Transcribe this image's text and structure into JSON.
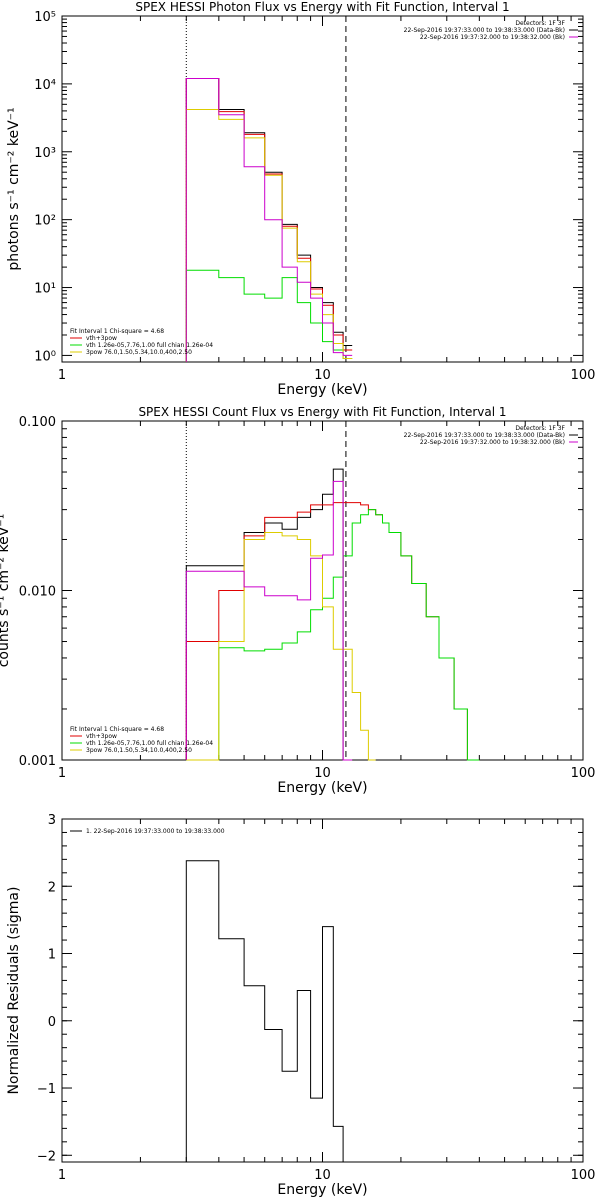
{
  "chart_data": [
    {
      "type": "line",
      "title": "SPEX HESSI Photon Flux vs Energy with Fit Function, Interval 1",
      "xlabel": "Energy (keV)",
      "ylabel": "photons s⁻¹ cm⁻² keV⁻¹",
      "xscale": "log",
      "yscale": "log",
      "xlim": [
        1,
        100
      ],
      "ylim": [
        0.8,
        100000
      ],
      "x_ticks": [
        "1",
        "10",
        "100"
      ],
      "y_ticks": [
        "10⁰",
        "10¹",
        "10²",
        "10³",
        "10⁴",
        "10⁵"
      ],
      "vlines": [
        {
          "x": 3.0,
          "style": "dotted"
        },
        {
          "x": 12.3,
          "style": "dashed"
        }
      ],
      "bin_edges": [
        3,
        4,
        5,
        6,
        7,
        8,
        9,
        10,
        11,
        12,
        13
      ],
      "series": [
        {
          "name": "data",
          "color": "#000000",
          "values": [
            12000,
            4200,
            1900,
            500,
            85,
            30,
            10,
            6,
            2.2,
            1.4
          ]
        },
        {
          "name": "vth+3pow",
          "color": "#e00000",
          "values": [
            12000,
            3900,
            1800,
            470,
            80,
            27,
            9.5,
            5.5,
            2.0,
            1.2
          ]
        },
        {
          "name": "vth 1.26e-05,7.76,1.00 full chian 1.26e-04",
          "color": "#00dd00",
          "values": [
            18,
            14,
            8,
            7,
            14,
            6,
            3,
            1.6,
            1.2,
            0.9
          ]
        },
        {
          "name": "3pow 76.0,1.50,5.34,10.0,400,2.50",
          "color": "#ddcc00",
          "values": [
            4200,
            3000,
            1600,
            450,
            75,
            24,
            8,
            4,
            1.5,
            0.9
          ]
        },
        {
          "name": "",
          "color": "#cc00cc",
          "values": [
            12000,
            3500,
            600,
            100,
            20,
            12,
            7,
            3,
            1.1,
            1.0
          ]
        }
      ],
      "legend_left": [
        {
          "text": "Fit Interval 1    Chi-square = 4.68",
          "color": "#000000"
        },
        {
          "text": "vth+3pow",
          "color": "#e00000"
        },
        {
          "text": "vth 1.26e-05,7.76,1.00  full chian 1.26e-04",
          "color": "#00dd00"
        },
        {
          "text": "3pow 76.0,1.50,5.34,10.0,400,2.50",
          "color": "#ddcc00"
        }
      ],
      "legend_right": [
        {
          "text": "Detectors: 1F 3F",
          "color": ""
        },
        {
          "text": "22-Sep-2016 19:37:33.000 to 19:38:33.000 (Data-Bk)",
          "color": "#000000"
        },
        {
          "text": "22-Sep-2016 19:37:32.000 to 19:38:32.000 (Bk)",
          "color": "#cc00cc"
        }
      ]
    },
    {
      "type": "line",
      "title": "SPEX HESSI Count Flux vs Energy with Fit Function, Interval 1",
      "xlabel": "Energy (keV)",
      "ylabel": "counts s⁻¹ cm⁻² keV⁻¹",
      "xscale": "log",
      "yscale": "log",
      "xlim": [
        1,
        100
      ],
      "ylim": [
        0.001,
        0.1
      ],
      "x_ticks": [
        "1",
        "10",
        "100"
      ],
      "y_ticks": [
        "0.001",
        "0.010",
        "0.100"
      ],
      "vlines": [
        {
          "x": 3.0,
          "style": "dotted"
        },
        {
          "x": 12.3,
          "style": "dashed"
        }
      ],
      "bin_edges": [
        3,
        4,
        5,
        6,
        7,
        8,
        9,
        10,
        11,
        12,
        13,
        14,
        15,
        16,
        17,
        18,
        20,
        22,
        25,
        28,
        32,
        36,
        40
      ],
      "series": [
        {
          "name": "data",
          "color": "#000000",
          "values": [
            0.014,
            0.014,
            0.022,
            0.025,
            0.023,
            0.027,
            0.03,
            0.037,
            0.052,
            0.0005,
            null,
            null,
            null,
            null,
            null,
            null,
            null,
            null,
            null,
            null,
            null,
            null
          ]
        },
        {
          "name": "vth+3pow",
          "color": "#e00000",
          "values": [
            0.005,
            0.01,
            0.021,
            0.027,
            0.027,
            0.029,
            0.032,
            0.032,
            0.033,
            0.033,
            0.033,
            0.032,
            0.03,
            0.028,
            0.025,
            0.022,
            0.016,
            0.011,
            0.007,
            0.004,
            0.002,
            0.001
          ]
        },
        {
          "name": "vth 1.26e-05,7.76,1.00 full chian 1.26e-04",
          "color": "#00dd00",
          "values": [
            0.0008,
            0.0046,
            0.0044,
            0.0045,
            0.0049,
            0.0057,
            0.0077,
            0.009,
            0.012,
            0.016,
            0.025,
            0.028,
            0.03,
            0.028,
            0.025,
            0.022,
            0.016,
            0.011,
            0.007,
            0.004,
            0.002,
            0.001
          ]
        },
        {
          "name": "3pow 76.0,1.50,5.34,10.0,400,2.50",
          "color": "#ddcc00",
          "values": [
            0.0009,
            0.005,
            0.02,
            0.022,
            0.021,
            0.02,
            0.016,
            0.008,
            0.0045,
            0.0045,
            0.0025,
            0.0015,
            0.0008,
            null,
            null,
            null,
            null,
            null,
            null,
            null,
            null,
            null
          ]
        },
        {
          "name": "",
          "color": "#cc00cc",
          "values": [
            0.013,
            0.013,
            0.0105,
            0.0093,
            0.0093,
            0.0088,
            0.0155,
            0.0162,
            0.044,
            0.0005,
            null,
            null,
            null,
            null,
            null,
            null,
            null,
            null,
            null,
            null,
            null,
            null
          ]
        }
      ],
      "legend_left": [
        {
          "text": "Fit Interval 1    Chi-square = 4.68",
          "color": "#000000"
        },
        {
          "text": "vth+3pow",
          "color": "#e00000"
        },
        {
          "text": "vth 1.26e-05,7.76,1.00  full chian 1.26e-04",
          "color": "#00dd00"
        },
        {
          "text": "3pow 76.0,1.50,5.34,10.0,400,2.50",
          "color": "#ddcc00"
        }
      ],
      "legend_right": [
        {
          "text": "Detectors: 1F 3F",
          "color": ""
        },
        {
          "text": "22-Sep-2016 19:37:33.000 to 19:38:33.000 (Data-Bk)",
          "color": "#000000"
        },
        {
          "text": "22-Sep-2016 19:37:32.000 to 19:38:32.000 (Bk)",
          "color": "#cc00cc"
        }
      ]
    },
    {
      "type": "line",
      "title": "",
      "xlabel": "Energy (keV)",
      "ylabel": "Normalized Residuals (sigma)",
      "xscale": "log",
      "yscale": "linear",
      "xlim": [
        1,
        100
      ],
      "ylim": [
        -2.1,
        3
      ],
      "x_ticks": [
        "1",
        "10",
        "100"
      ],
      "y_ticks": [
        "−2",
        "−1",
        "0",
        "1",
        "2",
        "3"
      ],
      "vlines": [],
      "bin_edges": [
        3,
        4,
        5,
        6,
        7,
        8,
        9,
        10,
        11,
        12,
        13
      ],
      "series": [
        {
          "name": "1. 22-Sep-2016 19:37:33.000 to 19:38:33.000",
          "color": "#000000",
          "values": [
            2.38,
            1.22,
            0.52,
            -0.13,
            -0.75,
            0.45,
            -1.15,
            1.4,
            -1.57,
            -2.1
          ]
        }
      ],
      "legend_left": [
        {
          "text": "1. 22-Sep-2016 19:37:33.000 to 19:38:33.000",
          "color": "#000000"
        }
      ],
      "legend_right": []
    }
  ]
}
